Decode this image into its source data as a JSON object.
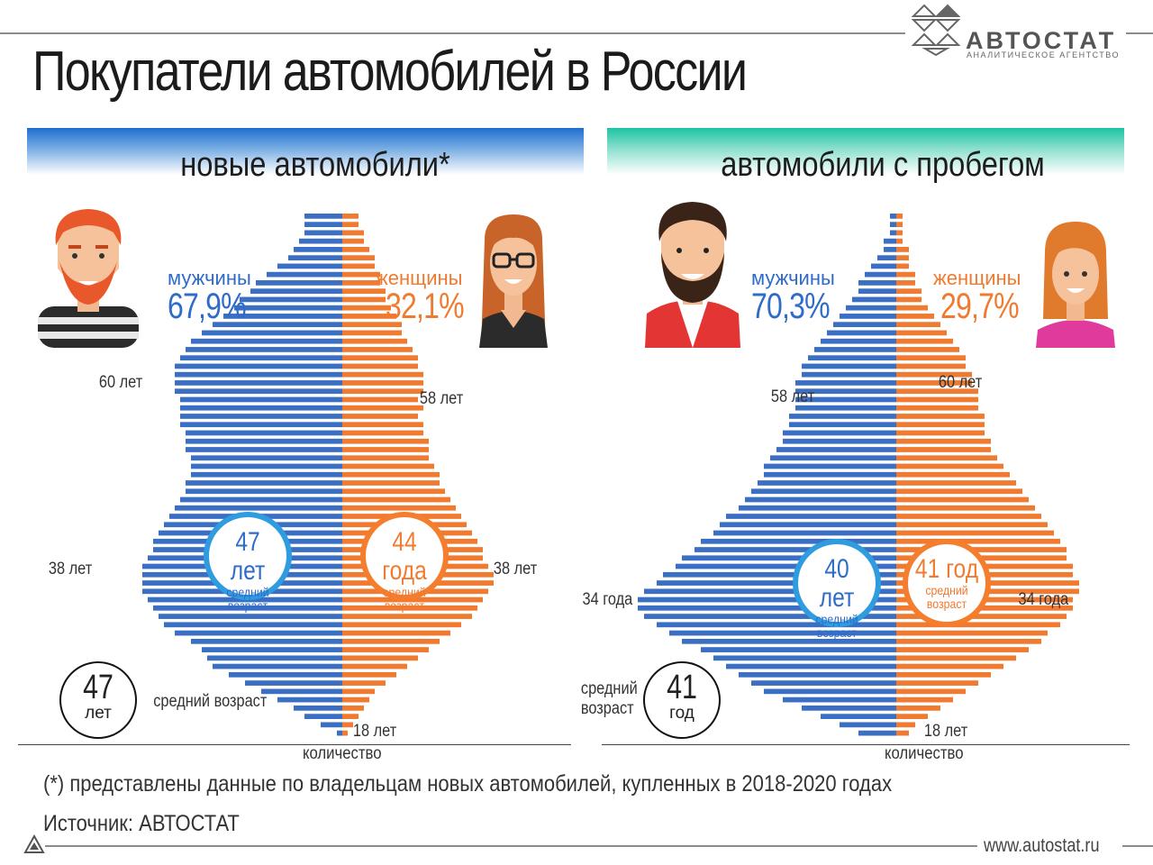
{
  "title": "Покупатели автомобилей в России",
  "logo": {
    "name": "АВТОСТАТ",
    "subtitle": "АНАЛИТИЧЕСКОЕ АГЕНТСТВО"
  },
  "footnote": "(*) представлены данные по владельцам новых автомобилей, купленных в 2018-2020 годах",
  "source": "Источник: АВТОСТАТ",
  "site": "www.autostat.ru",
  "colors": {
    "male": "#3a6fc4",
    "female": "#ef7a30",
    "new_band": "#1f6fd0",
    "used_band": "#1cc4a4"
  },
  "panels": {
    "new": {
      "title": "новые автомобили*",
      "male_label": "мужчины",
      "male_pct": "67,9%",
      "female_label": "женщины",
      "female_pct": "32,1%",
      "male_avg": {
        "value": "47 лет",
        "caption": "средний возраст"
      },
      "female_avg": {
        "value": "44 года",
        "caption": "средний возраст"
      },
      "overall_avg": {
        "value": "47",
        "unit": "лет",
        "caption": "средний возраст"
      },
      "age_labels": {
        "male_peak_old": "60 лет",
        "female_peak_old": "58 лет",
        "male_peak": "38 лет",
        "female_peak": "38 лет",
        "min_age": "18 лет"
      },
      "axis_label": "количество"
    },
    "used": {
      "title": "автомобили с пробегом",
      "male_label": "мужчины",
      "male_pct": "70,3%",
      "female_label": "женщины",
      "female_pct": "29,7%",
      "male_avg": {
        "value": "40 лет",
        "caption": "средний возраст"
      },
      "female_avg": {
        "value": "41 год",
        "caption": "средний возраст"
      },
      "overall_avg": {
        "value": "41",
        "unit": "год",
        "caption": "средний возраст"
      },
      "age_labels": {
        "male_peak_old": "58 лет",
        "female_peak_old": "60 лет",
        "male_peak": "34 года",
        "female_peak": "34 года",
        "min_age": "18 лет"
      },
      "axis_label": "количество"
    }
  },
  "chart_data": [
    {
      "type": "bar",
      "title": "новые автомобили*",
      "orientation": "population-pyramid",
      "xlabel": "количество",
      "age_range": [
        18,
        80
      ],
      "ages_top_to_bottom_from": 80,
      "series": [
        {
          "name": "мужчины",
          "values": [
            7,
            7,
            7,
            8,
            9,
            10,
            12,
            14,
            16,
            17,
            19,
            20,
            22,
            24,
            26,
            28,
            29,
            30,
            31,
            31,
            31,
            31,
            30,
            30,
            30,
            30,
            29,
            29,
            29,
            28,
            28,
            28,
            29,
            29,
            30,
            31,
            32,
            33,
            34,
            35,
            35,
            36,
            37,
            37,
            37,
            37,
            36,
            35,
            34,
            33,
            31,
            28,
            26,
            25,
            24,
            21,
            18,
            15,
            12,
            9,
            7,
            4,
            1
          ]
        },
        {
          "name": "женщины",
          "values": [
            3,
            3,
            4,
            4,
            5,
            6,
            6,
            7,
            7,
            8,
            8,
            9,
            10,
            11,
            11,
            12,
            13,
            14,
            14,
            15,
            15,
            15,
            14,
            15,
            14,
            15,
            15,
            16,
            16,
            16,
            17,
            18,
            18,
            19,
            20,
            21,
            22,
            23,
            24,
            25,
            26,
            26,
            27,
            28,
            28,
            27,
            26,
            25,
            24,
            22,
            20,
            18,
            16,
            14,
            12,
            10,
            8,
            6,
            5,
            4,
            3,
            2,
            1
          ]
        }
      ]
    },
    {
      "type": "bar",
      "title": "автомобили с пробегом",
      "orientation": "population-pyramid",
      "xlabel": "количество",
      "age_range": [
        18,
        80
      ],
      "ages_top_to_bottom_from": 80,
      "series": [
        {
          "name": "мужчины",
          "values": [
            1,
            1,
            1,
            2,
            2,
            3,
            4,
            5,
            6,
            6,
            7,
            8,
            9,
            10,
            11,
            12,
            13,
            14,
            15,
            15,
            16,
            16,
            16,
            16,
            17,
            17,
            18,
            18,
            19,
            20,
            21,
            21,
            22,
            23,
            24,
            25,
            27,
            28,
            29,
            31,
            32,
            34,
            35,
            37,
            38,
            40,
            41,
            41,
            40,
            38,
            36,
            34,
            31,
            29,
            27,
            25,
            23,
            21,
            18,
            15,
            12,
            9,
            6
          ]
        },
        {
          "name": "женщины",
          "values": [
            1,
            1,
            1,
            1,
            2,
            2,
            2,
            3,
            3,
            4,
            4,
            5,
            6,
            7,
            8,
            9,
            10,
            11,
            11,
            12,
            12,
            13,
            13,
            13,
            14,
            14,
            14,
            15,
            15,
            16,
            17,
            18,
            19,
            20,
            21,
            22,
            23,
            24,
            25,
            26,
            27,
            27,
            28,
            28,
            29,
            29,
            28,
            28,
            27,
            26,
            24,
            23,
            21,
            19,
            17,
            15,
            13,
            11,
            9,
            7,
            5,
            3,
            2
          ]
        }
      ]
    }
  ]
}
